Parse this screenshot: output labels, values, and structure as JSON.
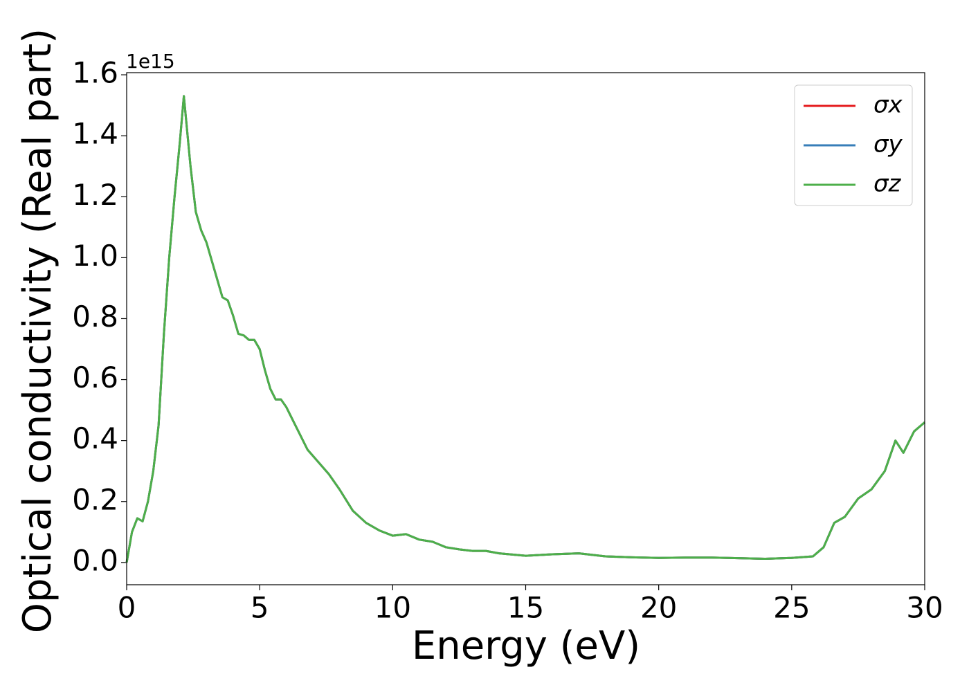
{
  "chart_data": {
    "type": "line",
    "xlabel": "Energy (eV)",
    "ylabel": "Optical conductivity (Real part)",
    "y_offset_label": "1e15",
    "x": [
      0,
      0.2,
      0.4,
      0.6,
      0.8,
      1.0,
      1.2,
      1.4,
      1.6,
      1.8,
      2.0,
      2.15,
      2.4,
      2.6,
      2.8,
      3.0,
      3.2,
      3.4,
      3.6,
      3.8,
      4.0,
      4.2,
      4.4,
      4.6,
      4.8,
      5.0,
      5.2,
      5.4,
      5.6,
      5.8,
      6.0,
      6.4,
      6.8,
      7.2,
      7.6,
      8.0,
      8.5,
      9,
      9.5,
      10,
      10.5,
      11,
      11.5,
      12,
      12.5,
      13,
      13.5,
      14,
      15,
      16,
      17,
      18,
      19,
      20,
      21,
      22,
      23,
      24,
      25,
      25.8,
      26.2,
      26.6,
      27.0,
      27.5,
      28,
      28.5,
      28.9,
      29.2,
      29.6,
      30
    ],
    "series": [
      {
        "name": "σx",
        "color": "#e41a1c",
        "values": [
          0.0,
          0.1,
          0.145,
          0.135,
          0.2,
          0.3,
          0.45,
          0.75,
          1.0,
          1.2,
          1.38,
          1.53,
          1.3,
          1.15,
          1.09,
          1.05,
          0.99,
          0.93,
          0.87,
          0.86,
          0.81,
          0.75,
          0.745,
          0.73,
          0.73,
          0.7,
          0.63,
          0.57,
          0.535,
          0.535,
          0.51,
          0.44,
          0.37,
          0.33,
          0.29,
          0.24,
          0.17,
          0.13,
          0.105,
          0.088,
          0.093,
          0.075,
          0.068,
          0.05,
          0.043,
          0.038,
          0.038,
          0.03,
          0.022,
          0.027,
          0.03,
          0.02,
          0.017,
          0.015,
          0.016,
          0.016,
          0.014,
          0.012,
          0.015,
          0.02,
          0.05,
          0.13,
          0.15,
          0.21,
          0.24,
          0.3,
          0.4,
          0.36,
          0.43,
          0.46
        ]
      },
      {
        "name": "σy",
        "color": "#377eb8",
        "values": [
          0.0,
          0.1,
          0.145,
          0.135,
          0.2,
          0.3,
          0.45,
          0.75,
          1.0,
          1.2,
          1.38,
          1.53,
          1.3,
          1.15,
          1.09,
          1.05,
          0.99,
          0.93,
          0.87,
          0.86,
          0.81,
          0.75,
          0.745,
          0.73,
          0.73,
          0.7,
          0.63,
          0.57,
          0.535,
          0.535,
          0.51,
          0.44,
          0.37,
          0.33,
          0.29,
          0.24,
          0.17,
          0.13,
          0.105,
          0.088,
          0.093,
          0.075,
          0.068,
          0.05,
          0.043,
          0.038,
          0.038,
          0.03,
          0.022,
          0.027,
          0.03,
          0.02,
          0.017,
          0.015,
          0.016,
          0.016,
          0.014,
          0.012,
          0.015,
          0.02,
          0.05,
          0.13,
          0.15,
          0.21,
          0.24,
          0.3,
          0.4,
          0.36,
          0.43,
          0.46
        ]
      },
      {
        "name": "σz",
        "color": "#4daf4a",
        "values": [
          0.0,
          0.1,
          0.145,
          0.135,
          0.2,
          0.3,
          0.45,
          0.75,
          1.0,
          1.2,
          1.38,
          1.53,
          1.3,
          1.15,
          1.09,
          1.05,
          0.99,
          0.93,
          0.87,
          0.86,
          0.81,
          0.75,
          0.745,
          0.73,
          0.73,
          0.7,
          0.63,
          0.57,
          0.535,
          0.535,
          0.51,
          0.44,
          0.37,
          0.33,
          0.29,
          0.24,
          0.17,
          0.13,
          0.105,
          0.088,
          0.093,
          0.075,
          0.068,
          0.05,
          0.043,
          0.038,
          0.038,
          0.03,
          0.022,
          0.027,
          0.03,
          0.02,
          0.017,
          0.015,
          0.016,
          0.016,
          0.014,
          0.012,
          0.015,
          0.02,
          0.05,
          0.13,
          0.15,
          0.21,
          0.24,
          0.3,
          0.4,
          0.36,
          0.43,
          0.46
        ]
      }
    ],
    "xlim": [
      0,
      30
    ],
    "xticks": [
      0,
      5,
      10,
      15,
      20,
      25,
      30
    ],
    "ylim": [
      -0.073,
      1.607
    ],
    "yticks": [
      {
        "value": 0,
        "label": "0.0"
      },
      0.2,
      0.4,
      0.6,
      0.8,
      {
        "value": 1,
        "label": "1.0"
      },
      1.2,
      1.4,
      1.6
    ],
    "grid": false,
    "legend": "upper right"
  }
}
